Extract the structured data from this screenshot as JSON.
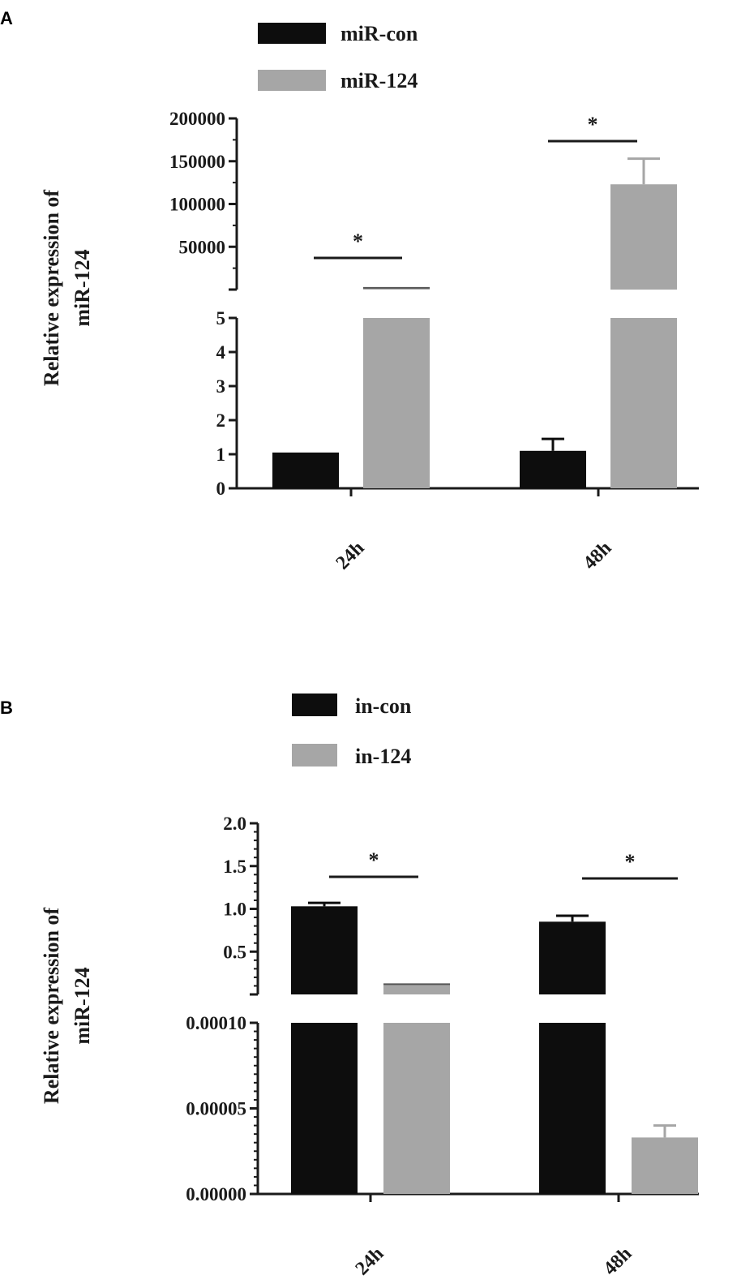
{
  "figure": {
    "panel_a_letter": "A",
    "panel_b_letter": "B"
  },
  "colors": {
    "control": "#0d0d0d",
    "treated": "#a6a6a6",
    "axis": "#1a1a1a"
  },
  "chart_data": [
    {
      "type": "bar",
      "panel": "A",
      "categories": [
        "24h",
        "48h"
      ],
      "series": [
        {
          "name": "miR-con",
          "values": [
            1.05,
            1.1
          ],
          "errors": [
            0.0,
            0.35
          ],
          "color": "#0d0d0d"
        },
        {
          "name": "miR-124",
          "values": [
            2000,
            123000
          ],
          "errors": [
            400,
            30000
          ],
          "color": "#a6a6a6"
        }
      ],
      "ylabel": [
        "Relative expression of",
        "miR-124"
      ],
      "axis_break": true,
      "lower_segment": {
        "ylim": [
          0,
          5
        ],
        "ticks": [
          "0",
          "1",
          "2",
          "3",
          "4",
          "5"
        ]
      },
      "upper_segment": {
        "ylim": [
          0,
          200000
        ],
        "ticks": [
          "50000",
          "100000",
          "150000",
          "200000"
        ]
      },
      "significance": [
        {
          "category": "24h",
          "label": "*"
        },
        {
          "category": "48h",
          "label": "*"
        }
      ],
      "legend_position": "top",
      "grid": false
    },
    {
      "type": "bar",
      "panel": "B",
      "categories": [
        "24h",
        "48h"
      ],
      "series": [
        {
          "name": "in-con",
          "values": [
            1.03,
            0.85
          ],
          "errors": [
            0.04,
            0.07
          ],
          "color": "#0d0d0d"
        },
        {
          "name": "in-124",
          "values": [
            0.12,
            3.3e-05
          ],
          "errors": [
            0.005,
            7e-06
          ],
          "color": "#a6a6a6"
        }
      ],
      "ylabel": [
        "Relative expression of",
        "miR-124"
      ],
      "axis_break": true,
      "lower_segment": {
        "ylim": [
          0,
          0.0001
        ],
        "ticks": [
          "0.00000",
          "0.00005",
          "0.00010"
        ]
      },
      "upper_segment": {
        "ylim": [
          0,
          2.0
        ],
        "ticks": [
          "0.5",
          "1.0",
          "1.5",
          "2.0"
        ]
      },
      "significance": [
        {
          "category": "24h",
          "label": "*"
        },
        {
          "category": "48h",
          "label": "*"
        }
      ],
      "legend_position": "top",
      "grid": false
    }
  ]
}
